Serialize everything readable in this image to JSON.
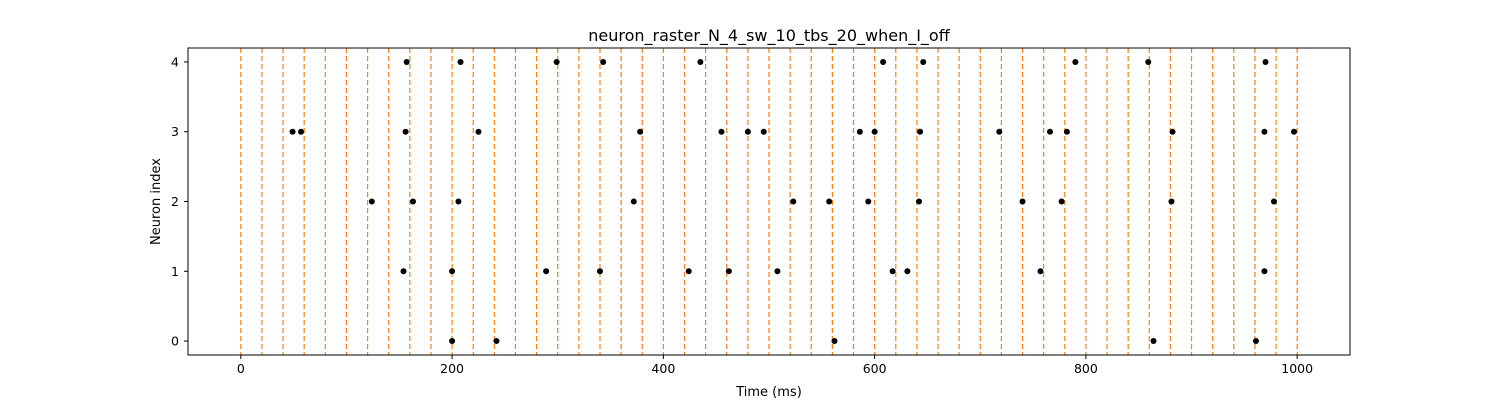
{
  "chart_data": {
    "type": "scatter",
    "title": "neuron_raster_N_4_sw_10_tbs_20_when_I_off",
    "xlabel": "Time (ms)",
    "ylabel": "Neuron index",
    "xlim": [
      -50,
      1050
    ],
    "ylim": [
      -0.2,
      4.2
    ],
    "xticks": [
      0,
      200,
      400,
      600,
      800,
      1000
    ],
    "yticks": [
      0,
      1,
      2,
      3,
      4
    ],
    "grid": false,
    "vlines": {
      "color": "#ff7f0e",
      "style": "dashed",
      "x": [
        0,
        20,
        40,
        60,
        80,
        100,
        120,
        140,
        160,
        180,
        200,
        220,
        240,
        260,
        280,
        300,
        320,
        340,
        360,
        380,
        400,
        420,
        440,
        460,
        480,
        500,
        520,
        540,
        560,
        580,
        600,
        620,
        640,
        660,
        680,
        700,
        720,
        740,
        760,
        780,
        800,
        820,
        840,
        860,
        880,
        900,
        920,
        940,
        960,
        980,
        1000
      ]
    },
    "series": [
      {
        "marker_color": "#000000",
        "points": [
          [
            200,
            0
          ],
          [
            242,
            0
          ],
          [
            562,
            0
          ],
          [
            864,
            0
          ],
          [
            961,
            0
          ],
          [
            154,
            1
          ],
          [
            200,
            1
          ],
          [
            289,
            1
          ],
          [
            340,
            1
          ],
          [
            424,
            1
          ],
          [
            462,
            1
          ],
          [
            508,
            1
          ],
          [
            617,
            1
          ],
          [
            631,
            1
          ],
          [
            757,
            1
          ],
          [
            969,
            1
          ],
          [
            124,
            2
          ],
          [
            163,
            2
          ],
          [
            206,
            2
          ],
          [
            372,
            2
          ],
          [
            523,
            2
          ],
          [
            557,
            2
          ],
          [
            594,
            2
          ],
          [
            642,
            2
          ],
          [
            740,
            2
          ],
          [
            777,
            2
          ],
          [
            881,
            2
          ],
          [
            978,
            2
          ],
          [
            49,
            3
          ],
          [
            57,
            3
          ],
          [
            156,
            3
          ],
          [
            225,
            3
          ],
          [
            378,
            3
          ],
          [
            455,
            3
          ],
          [
            480,
            3
          ],
          [
            495,
            3
          ],
          [
            586,
            3
          ],
          [
            600,
            3
          ],
          [
            643,
            3
          ],
          [
            718,
            3
          ],
          [
            766,
            3
          ],
          [
            782,
            3
          ],
          [
            882,
            3
          ],
          [
            969,
            3
          ],
          [
            997,
            3
          ],
          [
            157,
            4
          ],
          [
            208,
            4
          ],
          [
            299,
            4
          ],
          [
            343,
            4
          ],
          [
            435,
            4
          ],
          [
            608,
            4
          ],
          [
            646,
            4
          ],
          [
            790,
            4
          ],
          [
            859,
            4
          ],
          [
            970,
            4
          ]
        ]
      }
    ]
  }
}
